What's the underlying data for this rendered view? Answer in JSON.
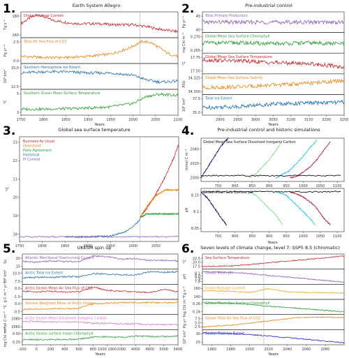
{
  "chart_data": [
    {
      "id": "p1",
      "number": "1.",
      "title": "Earth System Allegro",
      "type": "line",
      "xlabel": "Years",
      "xticks": [
        1750,
        1800,
        1850,
        1900,
        1950,
        2000,
        2050,
        2100
      ],
      "xlim": [
        1750,
        2100
      ],
      "panels": [
        {
          "label": "Drake Passage Current",
          "color": "#c0272d",
          "ylabel": "Tg s⁻¹",
          "yticks": [
            "180",
            "160"
          ],
          "x": [
            1750,
            1770,
            1790,
            1800,
            1820,
            1850,
            1880,
            1920,
            1960,
            2000,
            2030,
            2060,
            2100
          ],
          "y": [
            0.55,
            0.8,
            0.95,
            0.85,
            0.7,
            0.6,
            0.55,
            0.55,
            0.5,
            0.5,
            0.42,
            0.3,
            0.2
          ]
        },
        {
          "label": "Total Air Sea Flux of CO2",
          "color": "#e8851a",
          "ylabel": "Pg yr⁻¹",
          "yticks": [
            "2.5",
            "0.0"
          ],
          "x": [
            1750,
            1800,
            1850,
            1900,
            1950,
            1990,
            2020,
            2040,
            2060,
            2080,
            2100
          ],
          "y": [
            0.25,
            0.2,
            0.2,
            0.25,
            0.35,
            0.6,
            0.9,
            0.85,
            0.6,
            0.35,
            0.25
          ]
        },
        {
          "label": "Southern Hemisphere Ice Extent",
          "color": "#1f6faa",
          "ylabel": "10⁶ km²",
          "yticks": [
            "15.0",
            "12.5"
          ],
          "x": [
            1750,
            1800,
            1850,
            1900,
            1950,
            2000,
            2030,
            2060,
            2100
          ],
          "y": [
            0.65,
            0.7,
            0.7,
            0.65,
            0.65,
            0.55,
            0.35,
            0.25,
            0.3
          ]
        },
        {
          "label": "Southern Ocean Mean Surface Temperature",
          "color": "#2e9a38",
          "ylabel": "°C",
          "yticks": [
            "5",
            "3"
          ],
          "x": [
            1750,
            1800,
            1850,
            1900,
            1950,
            2000,
            2030,
            2060,
            2100
          ],
          "y": [
            0.2,
            0.2,
            0.22,
            0.25,
            0.3,
            0.45,
            0.75,
            0.85,
            0.8
          ]
        }
      ]
    },
    {
      "id": "p2",
      "number": "2.",
      "title": "Pre-industrial control",
      "type": "line",
      "xlabel": "Years",
      "xticks": [
        2900,
        2950,
        3000,
        3050,
        3100,
        3150,
        3200,
        3250
      ],
      "xlim": [
        2850,
        3250
      ],
      "panels": [
        {
          "label": "Total Primary Production",
          "color": "#8e5cb5",
          "ylabel": "Pg yr⁻¹",
          "yticks": [
            "45",
            "40"
          ],
          "x": [
            2850,
            2950,
            3050,
            3150,
            3250
          ],
          "y": [
            0.5,
            0.5,
            0.5,
            0.5,
            0.5
          ]
        },
        {
          "label": "Global Mean Sea Surface Chlorophyll",
          "color": "#2e9a38",
          "ylabel": "mg Chl m⁻³",
          "yticks": [
            "0.270",
            "0.265"
          ],
          "x": [
            2850,
            2950,
            3050,
            3150,
            3250
          ],
          "y": [
            0.5,
            0.5,
            0.45,
            0.5,
            0.45
          ]
        },
        {
          "label": "Global Mean Sea Surface Temperature",
          "color": "#c0272d",
          "ylabel": "°C",
          "yticks": [
            "17.75",
            "17.50"
          ],
          "x": [
            2850,
            2950,
            3050,
            3150,
            3250
          ],
          "y": [
            0.7,
            0.65,
            0.55,
            0.5,
            0.3
          ]
        },
        {
          "label": "Global Mean Sea Surface Salinity",
          "color": "#e8851a",
          "ylabel": "PSU",
          "yticks": [
            "34.325",
            "34.300"
          ],
          "x": [
            2850,
            2950,
            3050,
            3150,
            3250
          ],
          "y": [
            0.3,
            0.35,
            0.45,
            0.55,
            0.7
          ]
        },
        {
          "label": "Total Ice Extent",
          "color": "#1f6faa",
          "ylabel": "10⁶ km²",
          "yticks": [
            "37.5",
            "35.0"
          ],
          "x": [
            2850,
            2950,
            3050,
            3150,
            3250
          ],
          "y": [
            0.35,
            0.4,
            0.55,
            0.6,
            0.65
          ]
        }
      ]
    },
    {
      "id": "p3",
      "number": "3.",
      "title": "Global sea surface temperature",
      "type": "line",
      "xlabel": "",
      "ylabel": "°C",
      "xticks": [
        1750,
        1800,
        1850,
        1900,
        1950,
        2000,
        2050
      ],
      "xlim": [
        1750,
        2100
      ],
      "yticks": [
        18,
        19,
        20,
        21,
        22,
        23
      ],
      "ylim": [
        17.6,
        23.3
      ],
      "series": [
        {
          "name": "Business As Usual",
          "color": "#c0272d",
          "x": [
            2015,
            2030,
            2050,
            2070,
            2090,
            2100
          ],
          "y": [
            18.9,
            19.4,
            20.2,
            21.1,
            22.2,
            22.9
          ]
        },
        {
          "name": "Overshoot",
          "color": "#e8851a",
          "x": [
            2015,
            2030,
            2050,
            2070,
            2090,
            2100
          ],
          "y": [
            18.9,
            19.5,
            20.1,
            20.4,
            20.4,
            20.4
          ]
        },
        {
          "name": "Paris Agreement",
          "color": "#2e9a38",
          "x": [
            2015,
            2030,
            2050,
            2070,
            2090,
            2100
          ],
          "y": [
            18.9,
            19.1,
            19.1,
            19.1,
            19.1,
            19.1
          ]
        },
        {
          "name": "Historical",
          "color": "#1f6faa",
          "x": [
            1850,
            1900,
            1950,
            1980,
            2000,
            2015
          ],
          "y": [
            17.85,
            17.85,
            17.9,
            18.1,
            18.4,
            18.8
          ]
        },
        {
          "name": "PI Control",
          "color": "#8e5cb5",
          "x": [
            1750,
            1850,
            1950,
            2050,
            2100
          ],
          "y": [
            17.85,
            17.85,
            17.85,
            17.85,
            17.85
          ]
        }
      ]
    },
    {
      "id": "p4",
      "number": "4.",
      "title": "Pre-industrial control and historic simulations",
      "type": "line",
      "xlabel": "Years",
      "xticks": [
        750,
        800,
        850,
        900,
        950,
        1000,
        1050,
        1100
      ],
      "xlim": [
        700,
        1120
      ],
      "panels": [
        {
          "label": "Global Mean Sea Surface Dissolved Inorganic Carbon",
          "ylabel": "mmol C m⁻³",
          "yticks": [
            2000,
            2020,
            2040
          ],
          "ylim": [
            1995,
            2055
          ],
          "series": [
            {
              "color": "#1b1b6e",
              "x": [
                700,
                720,
                740,
                760,
                780
              ],
              "y": [
                2000,
                2015,
                2030,
                2045,
                2055
              ]
            },
            {
              "color": "#8fe08f",
              "x": [
                840,
                860,
                880,
                900,
                920,
                940
              ],
              "y": [
                2000,
                2005,
                2015,
                2025,
                2038,
                2052
              ]
            },
            {
              "color": "#22c5d6",
              "x": [
                920,
                940,
                960,
                980,
                1000,
                1020,
                1040
              ],
              "y": [
                2000,
                2005,
                2010,
                2020,
                2030,
                2042,
                2052
              ]
            },
            {
              "color": "#b0173a",
              "x": [
                960,
                980,
                1000,
                1020,
                1040,
                1060,
                1080
              ],
              "y": [
                2000,
                2002,
                2008,
                2015,
                2025,
                2038,
                2050
              ]
            },
            {
              "color": "#111111",
              "x": [
                700,
                800,
                900,
                1000,
                1110
              ],
              "y": [
                2003,
                2003,
                2003,
                2003,
                2003
              ]
            }
          ]
        },
        {
          "label": "Global Mean Sea Surface pH",
          "ylabel": "pH",
          "yticks": [
            8.05,
            8.1,
            8.15
          ],
          "ylim": [
            8.04,
            8.17
          ],
          "series": [
            {
              "color": "#1b1b6e",
              "x": [
                700,
                720,
                740,
                760,
                775
              ],
              "y": [
                8.16,
                8.14,
                8.11,
                8.08,
                8.06
              ]
            },
            {
              "color": "#8fe08f",
              "x": [
                840,
                860,
                880,
                900,
                920,
                940
              ],
              "y": [
                8.16,
                8.15,
                8.13,
                8.11,
                8.09,
                8.06
              ]
            },
            {
              "color": "#22c5d6",
              "x": [
                920,
                950,
                980,
                1000,
                1020,
                1035
              ],
              "y": [
                8.16,
                8.15,
                8.12,
                8.1,
                8.08,
                8.06
              ]
            },
            {
              "color": "#b0173a",
              "x": [
                960,
                990,
                1020,
                1040,
                1060,
                1080
              ],
              "y": [
                8.16,
                8.15,
                8.13,
                8.11,
                8.08,
                8.06
              ]
            },
            {
              "color": "#111111",
              "x": [
                700,
                800,
                900,
                1000,
                1110
              ],
              "y": [
                8.16,
                8.16,
                8.16,
                8.16,
                8.16
              ]
            }
          ]
        }
      ]
    },
    {
      "id": "p5",
      "number": "5.",
      "title": "UKESM spin up",
      "type": "line",
      "xlabel": "Years",
      "xticks": [
        "-200",
        "0",
        "200",
        "400",
        "600",
        "800",
        "1000 1900",
        "2000",
        "4000",
        "4900",
        "5000",
        "5400"
      ],
      "panels": [
        {
          "label": "Atlantic Meridional Overturning Current",
          "color": "#8e5cb5",
          "ylabel": "Sv",
          "yticks": [
            "20",
            "15"
          ],
          "y": [
            0.5,
            0.45,
            0.55,
            0.5,
            0.5,
            0.95,
            0.9,
            0.7,
            0.75,
            0.6,
            0.6,
            0.55
          ]
        },
        {
          "label": "Arctic Total Ice Extent",
          "color": "#1f6faa",
          "ylabel": "10⁶ km²",
          "yticks": [
            "10.0",
            "7.5"
          ],
          "y": [
            0.4,
            0.45,
            0.45,
            0.5,
            0.5,
            0.75,
            0.7,
            0.65,
            0.65,
            0.9,
            0.85,
            0.9
          ]
        },
        {
          "label": "Arctic Ocean Mean Air Sea Flux of CO2",
          "color": "#c0272d",
          "ylabel": "g C m⁻² yr⁻¹",
          "yticks": [
            "0.0",
            "-1.0"
          ],
          "y": [
            0.55,
            0.5,
            0.55,
            0.5,
            0.5,
            0.9,
            0.6,
            0.55,
            0.5,
            0.45,
            0.7,
            0.5
          ]
        },
        {
          "label": "Volume Weighted Mean of Arctic Ocean",
          "color": "#e8851a",
          "ylabel": "°C",
          "yticks": [
            "0.0",
            "-0.5"
          ],
          "y": [
            0.3,
            0.3,
            0.35,
            0.35,
            0.4,
            0.75,
            0.8,
            0.85,
            0.85,
            0.85,
            0.85,
            0.85
          ]
        },
        {
          "label": "Arctic Ocean Mean Dissolved Inorganic Carbon",
          "color": "#d77ad0",
          "ylabel": "mmol C m⁻³",
          "yticks": [
            "2080",
            "2060"
          ],
          "y": [
            0.55,
            0.55,
            0.5,
            0.5,
            0.5,
            0.4,
            0.4,
            0.35,
            0.35,
            0.3,
            0.3,
            0.3
          ]
        },
        {
          "label": "Arctic Ocean surface mean Chlorophyll",
          "color": "#2e9a38",
          "ylabel": "mg Chl m⁻³",
          "yticks": [
            "0.50",
            "0.25"
          ],
          "y": [
            0.3,
            0.3,
            0.3,
            0.3,
            0.35,
            0.5,
            0.55,
            0.5,
            0.6,
            0.55,
            0.55,
            0.6
          ]
        }
      ]
    },
    {
      "id": "p6",
      "number": "6.",
      "title": "Seven levels of climate change, level 7: SSP5 8.5 (chromatic)",
      "type": "line",
      "xlabel": "Years",
      "xticks": [
        1960,
        1980,
        2000,
        2020,
        2040,
        2060,
        2080
      ],
      "xlim": [
        1950,
        2100
      ],
      "panels": [
        {
          "label": "Sea Surface Temperature",
          "color": "#c0272d",
          "ylabel": "°C",
          "yticks": [
            "22.5",
            "20.0",
            "17.5"
          ],
          "x": [
            1950,
            1980,
            2000,
            2020,
            2050,
            2100
          ],
          "y": [
            0.1,
            0.15,
            0.25,
            0.4,
            0.6,
            0.95
          ]
        },
        {
          "label": "Global Mean pH",
          "color": "#8e5cb5",
          "ylabel": "pH",
          "yticks": [
            "8.1",
            "8.0",
            "7.9",
            "7.8"
          ],
          "x": [
            1950,
            1980,
            2000,
            2020,
            2050,
            2100
          ],
          "y": [
            0.9,
            0.85,
            0.75,
            0.6,
            0.4,
            0.05
          ]
        },
        {
          "label": "Drake Passage Current",
          "color": "#e8a623",
          "ylabel": "Tg s⁻¹",
          "yticks": [
            "160",
            "140"
          ],
          "x": [
            1950,
            1980,
            2000,
            2020,
            2040,
            2060,
            2100
          ],
          "y": [
            0.6,
            0.55,
            0.45,
            0.75,
            0.5,
            0.45,
            0.4
          ]
        },
        {
          "label": "Global Mean Sea Surface Chlorophyll",
          "color": "#2e9a38",
          "ylabel": "mg Chl m⁻³",
          "yticks": [
            "0.26",
            "0.24"
          ],
          "x": [
            1950,
            1980,
            2000,
            2020,
            2050,
            2100
          ],
          "y": [
            0.85,
            0.8,
            0.7,
            0.55,
            0.4,
            0.1
          ]
        },
        {
          "label": "Global Total Air Sea Flux of CO2",
          "color": "#e8851a",
          "ylabel": "Pg yr⁻¹",
          "yticks": [
            "7.5",
            "5.0",
            "2.5"
          ],
          "x": [
            1950,
            1980,
            2000,
            2020,
            2050,
            2080,
            2100
          ],
          "y": [
            0.1,
            0.25,
            0.4,
            0.6,
            0.85,
            0.9,
            0.85
          ]
        },
        {
          "label": "Global Total Ice Extent",
          "color": "#1f1fc8",
          "ylabel": "10⁶ km²",
          "yticks": [
            "30",
            "25"
          ],
          "x": [
            1950,
            1980,
            2000,
            2020,
            2050,
            2100
          ],
          "y": [
            0.85,
            0.8,
            0.7,
            0.6,
            0.4,
            0.05
          ]
        }
      ]
    }
  ]
}
